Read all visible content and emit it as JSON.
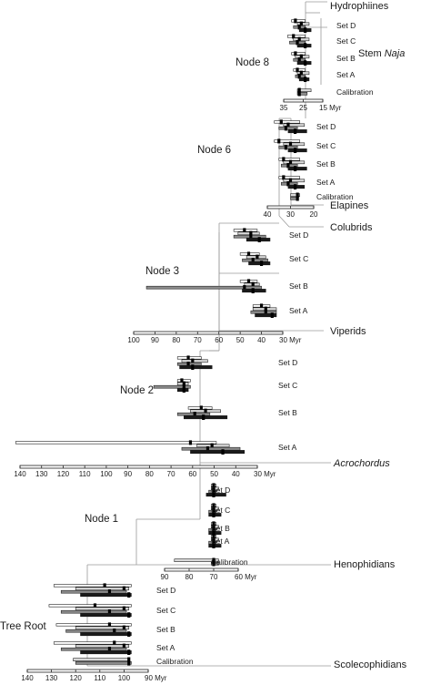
{
  "panels": [
    {
      "id": "node8",
      "node_label": "Node 8",
      "axis_ticks": [
        "35",
        "25",
        "15 Myr"
      ],
      "sets": [
        {
          "name": "Set D",
          "ci": [
            [
              31,
              24
            ],
            [
              28,
              22
            ],
            [
              30,
              24
            ],
            [
              27,
              21
            ]
          ],
          "mean": [
            29,
            26,
            27,
            24
          ]
        },
        {
          "name": "Set C",
          "ci": [
            [
              33,
              24
            ],
            [
              30,
              22
            ],
            [
              32,
              24
            ],
            [
              28,
              21
            ]
          ],
          "mean": [
            30,
            27,
            28,
            24
          ]
        },
        {
          "name": "Set B",
          "ci": [
            [
              31,
              24
            ],
            [
              29,
              22
            ],
            [
              30,
              24
            ],
            [
              28,
              21
            ]
          ],
          "mean": [
            29,
            26,
            27,
            24
          ]
        },
        {
          "name": "Set A",
          "ci": [
            [
              30,
              24
            ],
            [
              28,
              22
            ],
            [
              29,
              24
            ],
            [
              27,
              22
            ]
          ],
          "mean": [
            28,
            26,
            27,
            24
          ]
        }
      ],
      "calibration": {
        "label": "Calibration",
        "ci": [
          [
            28,
            21
          ],
          [
            28,
            23
          ]
        ],
        "mean": [
          27,
          27
        ]
      }
    },
    {
      "id": "node6",
      "node_label": "Node 6",
      "axis_ticks": [
        "40",
        "30",
        "20"
      ],
      "sets": [
        {
          "name": "Set D",
          "ci": [
            [
              37,
              26
            ],
            [
              33,
              24
            ],
            [
              35,
              27
            ],
            [
              31,
              23
            ]
          ],
          "mean": [
            34,
            31,
            32,
            28
          ]
        },
        {
          "name": "Set C",
          "ci": [
            [
              37,
              26
            ],
            [
              33,
              24
            ],
            [
              35,
              27
            ],
            [
              31,
              23
            ]
          ],
          "mean": [
            35,
            30,
            32,
            28
          ]
        },
        {
          "name": "Set B",
          "ci": [
            [
              35,
              26
            ],
            [
              33,
              24
            ],
            [
              34,
              27
            ],
            [
              31,
              23
            ]
          ],
          "mean": [
            33,
            30,
            31,
            28
          ]
        },
        {
          "name": "Set A",
          "ci": [
            [
              35,
              26
            ],
            [
              33,
              24
            ],
            [
              34,
              27
            ],
            [
              31,
              24
            ]
          ],
          "mean": [
            33,
            30,
            31,
            28
          ]
        }
      ],
      "calibration": {
        "label": "Calibration",
        "ci": [
          [
            30,
            26
          ],
          [
            30,
            27
          ]
        ],
        "mean": [
          27,
          27
        ]
      }
    },
    {
      "id": "node3",
      "node_label": "Node 3",
      "axis_ticks": [
        "100",
        "90",
        "80",
        "70",
        "60",
        "50",
        "40",
        "30 Myr"
      ],
      "sets": [
        {
          "name": "Set D",
          "ci": [
            [
              53,
              42
            ],
            [
              51,
              41
            ],
            [
              53,
              38
            ],
            [
              47,
              36
            ]
          ],
          "mean": [
            48,
            45,
            45,
            41
          ]
        },
        {
          "name": "Set C",
          "ci": [
            [
              50,
              41
            ],
            [
              47,
              38
            ],
            [
              49,
              37
            ],
            [
              46,
              36
            ]
          ],
          "mean": [
            46,
            42,
            44,
            40
          ]
        },
        {
          "name": "Set B",
          "ci": [
            [
              50,
              42
            ],
            [
              48,
              41
            ],
            [
              94,
              40
            ],
            [
              49,
              38
            ]
          ],
          "mean": [
            46,
            44,
            48,
            44
          ]
        },
        {
          "name": "Set A",
          "ci": [
            [
              44,
              36
            ],
            [
              44,
              33
            ],
            [
              45,
              33
            ],
            [
              43,
              33
            ]
          ],
          "mean": [
            40,
            38,
            38,
            35
          ]
        }
      ],
      "calibration": null
    },
    {
      "id": "node2",
      "node_label": "Node 2",
      "axis_ticks": [
        "140",
        "130",
        "120",
        "110",
        "100",
        "90",
        "80",
        "70",
        "60",
        "50",
        "40",
        "30 Myr"
      ],
      "sets": [
        {
          "name": "Set D",
          "ci": [
            [
              67,
              56
            ],
            [
              65,
              53
            ],
            [
              67,
              56
            ],
            [
              66,
              51
            ]
          ],
          "mean": [
            62,
            60,
            62,
            60
          ]
        },
        {
          "name": "Set C",
          "ci": [
            [
              67,
              61
            ],
            [
              67,
              62
            ],
            [
              78,
              61
            ],
            [
              67,
              62
            ]
          ],
          "mean": [
            65,
            64,
            64,
            64
          ]
        },
        {
          "name": "Set B",
          "ci": [
            [
              62,
              51
            ],
            [
              61,
              47
            ],
            [
              67,
              52
            ],
            [
              64,
              44
            ]
          ],
          "mean": [
            56,
            54,
            59,
            55
          ]
        },
        {
          "name": "Set A",
          "ci": [
            [
              142,
              49
            ],
            [
              58,
              43
            ],
            [
              65,
              38
            ],
            [
              61,
              36
            ]
          ],
          "mean": [
            61,
            51,
            53,
            46
          ]
        }
      ],
      "calibration": null
    },
    {
      "id": "node1",
      "node_label": "Node 1",
      "axis_ticks": [
        "90",
        "80",
        "70",
        "60 Myr"
      ],
      "sets": [
        {
          "name": "Set D",
          "ci": [
            [
              71,
              69
            ],
            [
              71,
              68
            ],
            [
              72,
              69
            ],
            [
              73,
              65
            ]
          ],
          "mean": [
            70,
            70,
            70,
            70
          ]
        },
        {
          "name": "Set C",
          "ci": [
            [
              71,
              69
            ],
            [
              71,
              68
            ],
            [
              72,
              69
            ],
            [
              72,
              67
            ]
          ],
          "mean": [
            70,
            70,
            70,
            70
          ]
        },
        {
          "name": "Set B",
          "ci": [
            [
              71,
              69
            ],
            [
              71,
              68
            ],
            [
              72,
              69
            ],
            [
              72,
              67
            ]
          ],
          "mean": [
            70,
            70,
            70,
            70
          ]
        },
        {
          "name": "Set A",
          "ci": [
            [
              71,
              69
            ],
            [
              71,
              68
            ],
            [
              72,
              69
            ],
            [
              72,
              67
            ]
          ],
          "mean": [
            70,
            70,
            70,
            70
          ]
        }
      ],
      "calibration": {
        "label": "Calibration",
        "ci": [
          [
            86,
            68
          ],
          [
            71,
            68
          ]
        ],
        "mean": [
          70,
          70
        ]
      }
    },
    {
      "id": "root",
      "node_label": "Tree Root",
      "axis_ticks": [
        "140",
        "130",
        "120",
        "110",
        "100",
        "90 Myr"
      ],
      "sets": [
        {
          "name": "Set D",
          "ci": [
            [
              129,
              97
            ],
            [
              120,
              98
            ],
            [
              126,
              99
            ],
            [
              118,
              97
            ]
          ],
          "mean": [
            108,
            100,
            106,
            98
          ]
        },
        {
          "name": "Set C",
          "ci": [
            [
              131,
              97
            ],
            [
              120,
              98
            ],
            [
              126,
              99
            ],
            [
              118,
              97
            ]
          ],
          "mean": [
            112,
            100,
            106,
            98
          ]
        },
        {
          "name": "Set B",
          "ci": [
            [
              128,
              97
            ],
            [
              120,
              98
            ],
            [
              124,
              99
            ],
            [
              118,
              97
            ]
          ],
          "mean": [
            106,
            100,
            104,
            98
          ]
        },
        {
          "name": "Set A",
          "ci": [
            [
              129,
              97
            ],
            [
              120,
              98
            ],
            [
              126,
              99
            ],
            [
              118,
              97
            ]
          ],
          "mean": [
            104,
            100,
            106,
            98
          ]
        }
      ],
      "calibration": {
        "label": "Calibration",
        "ci": [
          [
            121,
            98
          ],
          [
            120,
            97
          ]
        ],
        "mean": [
          98,
          98
        ]
      }
    }
  ],
  "clades": {
    "hydrophiines": "Hydrophiines",
    "stem_naja_prefix": "Stem ",
    "stem_naja_italic": "Naja",
    "elapines": "Elapines",
    "colubrids": "Colubrids",
    "viperids": "Viperids",
    "acrochordus": "Acrochordus",
    "henophidians": "Henophidians",
    "scolecophidians": "Scolecophidians"
  },
  "colors": {
    "bar_white": "#ffffff",
    "bar_light": "#d8d8d8",
    "bar_mid": "#8c8c8c",
    "bar_dark": "#1a1a1a",
    "mean_marker": "#000000",
    "tree_line": "#9a9a9a"
  }
}
